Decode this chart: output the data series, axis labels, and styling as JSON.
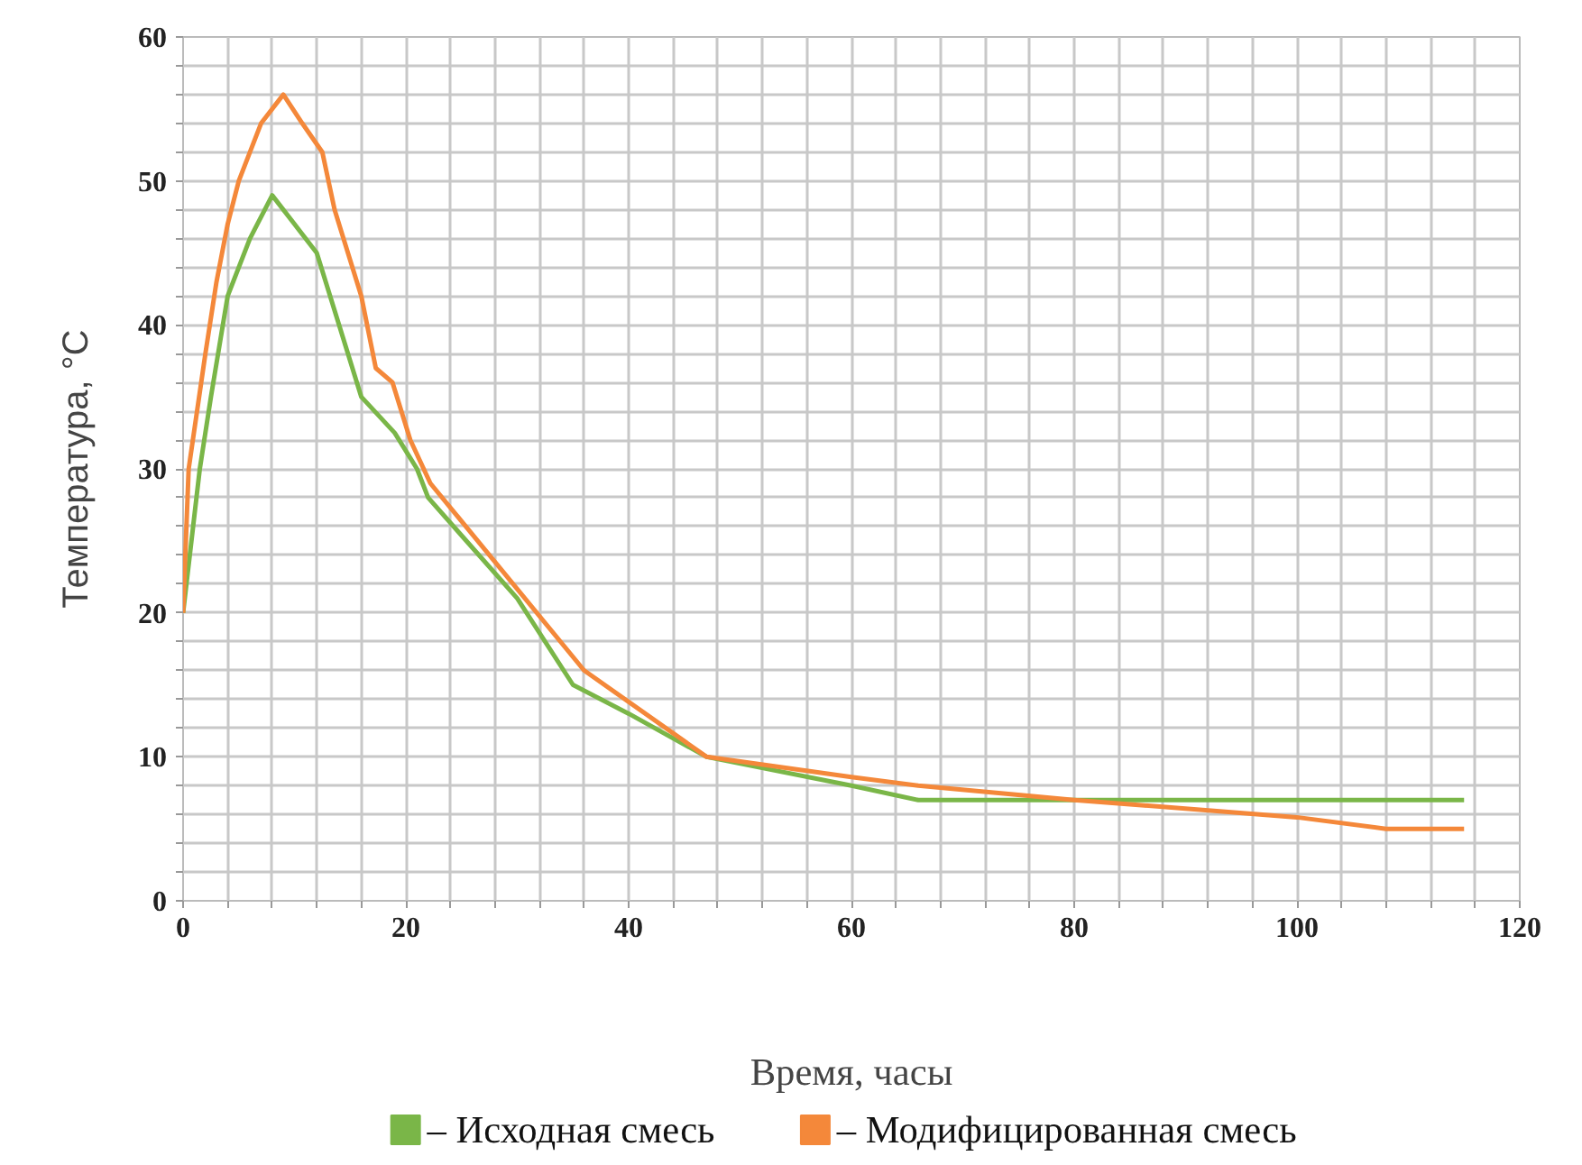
{
  "chart_data": {
    "type": "line",
    "xlabel": "Время, часы",
    "ylabel": "Температура, °C",
    "xlim": [
      0,
      120
    ],
    "ylim": [
      0,
      60
    ],
    "xticks": [
      0,
      {
        "value": 4,
        "label": null
      },
      {
        "value": 8,
        "label": null
      },
      {
        "value": 12,
        "label": null
      },
      {
        "value": 16,
        "label": null
      },
      20,
      {
        "value": 24,
        "label": null
      },
      {
        "value": 28,
        "label": null
      },
      {
        "value": 32,
        "label": null
      },
      {
        "value": 36,
        "label": null
      },
      40,
      {
        "value": 44,
        "label": null
      },
      {
        "value": 48,
        "label": null
      },
      {
        "value": 52,
        "label": null
      },
      {
        "value": 56,
        "label": null
      },
      60,
      {
        "value": 64,
        "label": null
      },
      {
        "value": 68,
        "label": null
      },
      {
        "value": 72,
        "label": null
      },
      {
        "value": 76,
        "label": null
      },
      80,
      {
        "value": 84,
        "label": null
      },
      {
        "value": 88,
        "label": null
      },
      {
        "value": 92,
        "label": null
      },
      {
        "value": 96,
        "label": null
      },
      100,
      {
        "value": 104,
        "label": null
      },
      {
        "value": 108,
        "label": null
      },
      {
        "value": 112,
        "label": null
      },
      {
        "value": 116,
        "label": null
      },
      120
    ],
    "yticks": [
      0,
      {
        "value": 2,
        "label": null
      },
      {
        "value": 4,
        "label": null
      },
      {
        "value": 6,
        "label": null
      },
      {
        "value": 8,
        "label": null
      },
      10,
      {
        "value": 12,
        "label": null
      },
      {
        "value": 14,
        "label": null
      },
      {
        "value": 16,
        "label": null
      },
      {
        "value": 18,
        "label": null
      },
      20,
      {
        "value": 22,
        "label": null
      },
      {
        "value": 24,
        "label": null
      },
      {
        "value": 26,
        "label": null
      },
      {
        "value": 28,
        "label": null
      },
      30,
      {
        "value": 32,
        "label": null
      },
      {
        "value": 34,
        "label": null
      },
      {
        "value": 36,
        "label": null
      },
      {
        "value": 38,
        "label": null
      },
      40,
      {
        "value": 42,
        "label": null
      },
      {
        "value": 44,
        "label": null
      },
      {
        "value": 46,
        "label": null
      },
      {
        "value": 48,
        "label": null
      },
      50,
      {
        "value": 52,
        "label": null
      },
      {
        "value": 54,
        "label": null
      },
      {
        "value": 56,
        "label": null
      },
      {
        "value": 58,
        "label": null
      },
      60
    ],
    "grid": true,
    "legend": "bottom",
    "marker": "none",
    "line_style": "solid",
    "series": [
      {
        "name": "– Исходная смесь",
        "color": "#7ab648",
        "x": [
          0,
          1.5,
          2.5,
          4,
          6,
          8,
          10,
          12,
          14,
          16,
          19,
          21,
          22,
          30,
          35,
          40,
          47,
          60,
          66,
          80,
          115
        ],
        "values": [
          20,
          30,
          35,
          42,
          46,
          49,
          47,
          45,
          40,
          35,
          32.5,
          30,
          28,
          21,
          15,
          13,
          10,
          8,
          7,
          7,
          7
        ]
      },
      {
        "name": "– Модифицированная смесь",
        "color": "#f4883a",
        "x": [
          0,
          0.5,
          2,
          3,
          4,
          5,
          7,
          9,
          10.7,
          12.5,
          13.6,
          16,
          17.3,
          18.8,
          20.4,
          22.2,
          36,
          47,
          60,
          66,
          80,
          100,
          108,
          115
        ],
        "values": [
          20,
          30,
          38,
          43,
          47,
          50,
          54,
          56,
          54,
          52,
          48,
          42,
          37,
          36,
          32,
          29,
          16,
          10,
          8.6,
          8,
          7,
          5.8,
          5,
          5
        ]
      }
    ]
  }
}
